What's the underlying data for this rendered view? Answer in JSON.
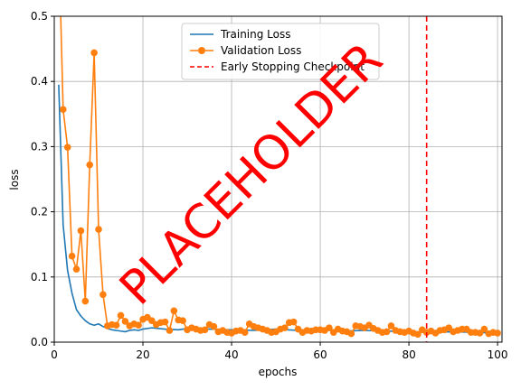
{
  "chart_data": {
    "type": "line",
    "xlabel": "epochs",
    "ylabel": "loss",
    "xlim": [
      0,
      101
    ],
    "ylim": [
      0,
      0.5
    ],
    "xticks": [
      0,
      20,
      40,
      60,
      80,
      100
    ],
    "xtick_labels": [
      "0",
      "20",
      "40",
      "60",
      "80",
      "100"
    ],
    "yticks": [
      0,
      0.1,
      0.2,
      0.3,
      0.4,
      0.5
    ],
    "ytick_labels": [
      "0.0",
      "0.1",
      "0.2",
      "0.3",
      "0.4",
      "0.5"
    ],
    "grid": true,
    "legend_position": "top-center",
    "series": [
      {
        "name": "Training Loss",
        "color": "#1f77b4",
        "marker": "none",
        "x": [
          1,
          2,
          3,
          4,
          5,
          6,
          7,
          8,
          9,
          10,
          11,
          12,
          13,
          14,
          15,
          16,
          17,
          18,
          19,
          20,
          22,
          25,
          28,
          30,
          35,
          40,
          45,
          50,
          55,
          60,
          65,
          70,
          75,
          80,
          85,
          90,
          95,
          100
        ],
        "y": [
          0.395,
          0.18,
          0.11,
          0.075,
          0.05,
          0.04,
          0.033,
          0.028,
          0.026,
          0.028,
          0.024,
          0.021,
          0.019,
          0.018,
          0.017,
          0.016,
          0.018,
          0.019,
          0.018,
          0.02,
          0.022,
          0.02,
          0.019,
          0.021,
          0.02,
          0.019,
          0.018,
          0.02,
          0.018,
          0.019,
          0.017,
          0.018,
          0.017,
          0.016,
          0.015,
          0.016,
          0.015,
          0.014
        ]
      },
      {
        "name": "Validation Loss",
        "color": "#ff7f0e",
        "marker": "circle",
        "x": [
          1,
          2,
          3,
          4,
          5,
          6,
          7,
          8,
          9,
          10,
          11,
          12,
          13,
          14,
          15,
          16,
          17,
          18,
          19,
          20,
          21,
          22,
          23,
          24,
          25,
          26,
          27,
          28,
          29,
          30,
          31,
          32,
          33,
          34,
          35,
          36,
          37,
          38,
          39,
          40,
          41,
          42,
          43,
          44,
          45,
          46,
          47,
          48,
          49,
          50,
          51,
          52,
          53,
          54,
          55,
          56,
          57,
          58,
          59,
          60,
          61,
          62,
          63,
          64,
          65,
          66,
          67,
          68,
          69,
          70,
          71,
          72,
          73,
          74,
          75,
          76,
          77,
          78,
          79,
          80,
          81,
          82,
          83,
          84,
          85,
          86,
          87,
          88,
          89,
          90,
          91,
          92,
          93,
          94,
          95,
          96,
          97,
          98,
          99,
          100
        ],
        "y": [
          0.62,
          0.357,
          0.299,
          0.132,
          0.112,
          0.171,
          0.063,
          0.272,
          0.444,
          0.173,
          0.073,
          0.025,
          0.027,
          0.026,
          0.041,
          0.032,
          0.025,
          0.028,
          0.026,
          0.035,
          0.038,
          0.033,
          0.027,
          0.03,
          0.031,
          0.018,
          0.048,
          0.034,
          0.033,
          0.019,
          0.022,
          0.02,
          0.018,
          0.019,
          0.027,
          0.024,
          0.016,
          0.018,
          0.015,
          0.014,
          0.017,
          0.018,
          0.015,
          0.028,
          0.024,
          0.022,
          0.02,
          0.018,
          0.015,
          0.016,
          0.02,
          0.022,
          0.03,
          0.031,
          0.02,
          0.015,
          0.018,
          0.017,
          0.019,
          0.019,
          0.018,
          0.022,
          0.015,
          0.02,
          0.017,
          0.016,
          0.013,
          0.025,
          0.024,
          0.022,
          0.026,
          0.021,
          0.018,
          0.015,
          0.016,
          0.025,
          0.018,
          0.016,
          0.015,
          0.017,
          0.014,
          0.012,
          0.019,
          0.015,
          0.017,
          0.014,
          0.018,
          0.019,
          0.022,
          0.016,
          0.018,
          0.02,
          0.02,
          0.015,
          0.015,
          0.014,
          0.02,
          0.013,
          0.015,
          0.014
        ]
      }
    ],
    "annotations": [
      {
        "type": "vline",
        "name": "Early Stopping Checkpoint",
        "x": 84,
        "color": "#ff0000",
        "style": "dashed"
      }
    ],
    "watermark": {
      "text": "PLACEHOLDER",
      "color": "#ff0000"
    }
  }
}
